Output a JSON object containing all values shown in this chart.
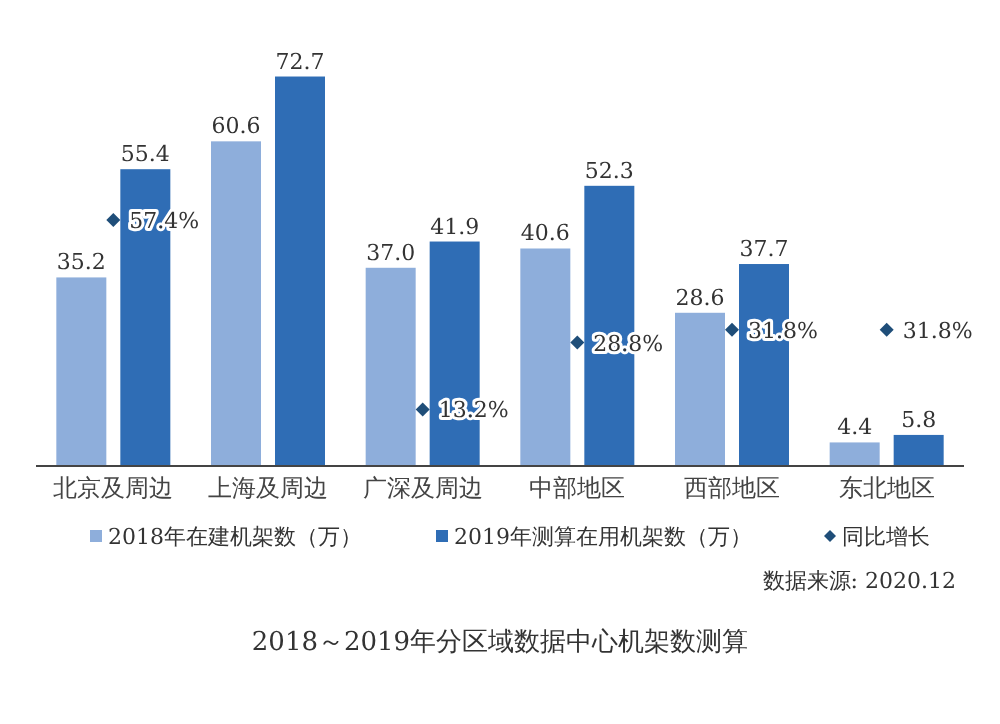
{
  "chart_data": {
    "type": "bar",
    "title": "2018～2019年分区域数据中心机架数测算",
    "categories": [
      "北京及周边",
      "上海及周边",
      "广深及周边",
      "中部地区",
      "西部地区",
      "东北地区"
    ],
    "series": [
      {
        "name": "2018年在建机架数（万）",
        "color": "#8eaedb",
        "values": [
          35.2,
          60.6,
          37.0,
          40.6,
          28.6,
          4.4
        ],
        "value_labels": [
          "35.2",
          "60.6",
          "37.0",
          "40.6",
          "28.6",
          "4.4"
        ]
      },
      {
        "name": "2019年测算在用机架数（万）",
        "color": "#2f6db5",
        "values": [
          55.4,
          72.7,
          41.9,
          52.3,
          37.7,
          5.8
        ],
        "value_labels": [
          "55.4",
          "72.7",
          "41.9",
          "52.3",
          "37.7",
          "5.8"
        ]
      },
      {
        "name": "同比增长",
        "type": "scatter",
        "axis": "y2",
        "color": "#1f4e79",
        "values": [
          57.4,
          null,
          13.2,
          28.8,
          31.8,
          31.8
        ],
        "value_labels": [
          "57.4%",
          null,
          "13.2%",
          "28.8%",
          "31.8%",
          "31.8%"
        ]
      }
    ],
    "tick_labels": "x",
    "legend": "bottom",
    "marker": "diamond",
    "annotations": [
      "数据来源: 2020.12"
    ]
  }
}
